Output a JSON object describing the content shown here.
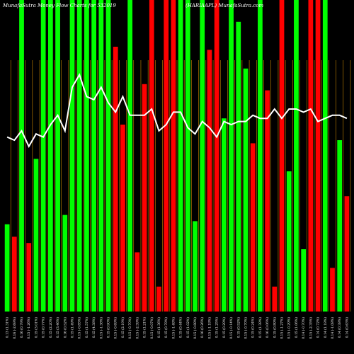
{
  "header": {
    "left": "MunafaSutra  Money Flow  Charts for 532019",
    "center": "(HARIAAPL) MunafaSutra.com"
  },
  "colors": {
    "background": "#000000",
    "up": "#00ff00",
    "down": "#ff0000",
    "line": "#ffffff",
    "gridline": "#cc8800"
  },
  "chart_data": {
    "type": "bar",
    "title": "",
    "xlabel": "",
    "ylabel": "",
    "ylim": [
      0,
      100
    ],
    "grid": "vertical",
    "categories": [
      "0.13 (1.31%)",
      "0.16 (-2.69%)",
      "0.16 (0.79%)",
      "0.15 (-1.26%)",
      "0.15 (3.01%)",
      "0.15 (0.77%)",
      "0.15 (2.20%)",
      "0.15 (3.46%)",
      "0.16 (0.52%)",
      "0.15 (1.49%)",
      "0.15 (-0.85%)",
      "0.15 (1.57%)",
      "0.15 (4.38%)",
      "0.15 (-1.38%)",
      "0.15 (0.90%)",
      "0.15 (-0.69%)",
      "0.15 (2.19%)",
      "0.15 (-0.70%)",
      "0.15 (-2.39%)",
      "0.15 (1.21%)",
      "0.15 (-0.07%)",
      "0.15 (1.36%)",
      "0.15 (0.78%)",
      "0.15 (-1.48%)",
      "0.15 (0.44%)",
      "0.15 (1.02%)",
      "0.15 (-0.88%)",
      "0.16 (0.26%)",
      "0.15 (-1.18%)",
      "0.15 (1.25%)",
      "0.15 (0.29%)",
      "0.15 (-0.14%)",
      "0.15 (0.52%)",
      "0.15 (-0.70%)",
      "0.15 (0.24%)",
      "0.15 (1.38%)",
      "0.16 (0.06%)",
      "0.15 (0.89%)",
      "0.15 (-1.27%)",
      "0.15 (-0.29%)",
      "0.15 (1.06%)",
      "0.14 (-0.70%)",
      "0.15 (-2.35%)",
      "0.14 (0.72%)",
      "0.14 (1.18%)",
      "0.14 (-1.08%)",
      "0.14 (0.38%)",
      "0.14 (0.63%)"
    ],
    "series": [
      {
        "values": [
          28,
          24,
          100,
          22,
          49,
          100,
          100,
          100,
          31,
          100,
          100,
          100,
          100,
          100,
          100,
          85,
          60,
          100,
          19,
          73,
          100,
          8,
          100,
          100,
          100,
          100,
          29,
          100,
          84,
          100,
          62,
          100,
          93,
          78,
          54,
          100,
          71,
          8,
          100,
          45,
          100,
          20,
          100,
          100,
          100,
          14,
          55,
          37
        ],
        "directions": [
          "up",
          "down",
          "up",
          "down",
          "up",
          "up",
          "up",
          "up",
          "up",
          "up",
          "up",
          "up",
          "up",
          "up",
          "up",
          "down",
          "down",
          "up",
          "down",
          "down",
          "down",
          "down",
          "down",
          "down",
          "up",
          "up",
          "up",
          "up",
          "down",
          "down",
          "up",
          "up",
          "up",
          "up",
          "down",
          "up",
          "down",
          "down",
          "down",
          "up",
          "up",
          "up",
          "down",
          "down",
          "up",
          "down",
          "up",
          "down"
        ]
      },
      {
        "type": "line",
        "values": [
          56,
          55,
          58,
          53,
          57,
          56,
          60,
          63,
          58,
          72,
          76,
          69,
          68,
          72,
          67,
          64,
          69,
          63,
          63,
          63,
          65,
          58,
          60,
          64,
          64,
          59,
          57,
          61,
          59,
          56,
          61,
          60,
          61,
          61,
          63,
          62,
          62,
          65,
          62,
          65,
          65,
          64,
          65,
          61,
          62,
          63,
          63,
          62
        ]
      }
    ]
  }
}
